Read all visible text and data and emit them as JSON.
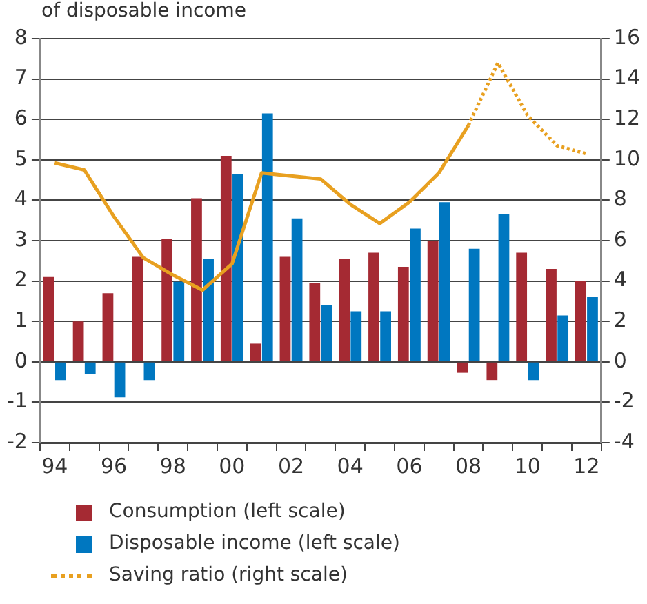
{
  "chart_data": {
    "type": "bar",
    "title": "of disposable income",
    "categories": [
      "94",
      null,
      "96",
      null,
      "98",
      null,
      "00",
      null,
      "02",
      null,
      "04",
      null,
      "06",
      null,
      "08",
      null,
      "10",
      null,
      "12"
    ],
    "series": [
      {
        "name": "Consumption (left scale)",
        "color": "#a52a33",
        "values": [
          2.1,
          1.0,
          1.7,
          2.6,
          3.05,
          4.05,
          5.1,
          0.45,
          2.6,
          1.95,
          2.55,
          2.7,
          2.35,
          3.0,
          -0.27,
          -0.45,
          2.7,
          2.3,
          2.0
        ]
      },
      {
        "name": "Disposable income (left scale)",
        "color": "#0077c0",
        "values": [
          -0.45,
          -0.3,
          -0.88,
          -0.45,
          1.98,
          2.55,
          4.65,
          6.15,
          3.55,
          1.4,
          1.25,
          1.25,
          3.3,
          3.95,
          2.8,
          3.65,
          -0.45,
          1.15,
          1.6
        ]
      },
      {
        "type": "line",
        "axis": "y2",
        "color": "#e8a020",
        "line_style": "solid",
        "values": [
          9.85,
          9.5,
          7.2,
          5.15,
          4.3,
          3.55,
          4.85,
          9.35,
          9.2,
          9.05,
          7.8,
          6.85,
          7.9,
          9.35,
          11.7,
          null,
          null,
          null,
          null
        ]
      },
      {
        "name": "Saving ratio (right scale)",
        "type": "line",
        "axis": "y2",
        "color": "#e8a020",
        "line_style": "dotted",
        "values": [
          null,
          null,
          null,
          null,
          null,
          null,
          null,
          null,
          null,
          null,
          null,
          null,
          null,
          null,
          11.7,
          14.8,
          12.2,
          10.7,
          10.3
        ]
      }
    ],
    "ylim": [
      -2,
      8
    ],
    "yticks": [
      -2,
      -1,
      0,
      1,
      2,
      3,
      4,
      5,
      6,
      7,
      8
    ],
    "y2lim": [
      -4,
      16
    ],
    "y2ticks": [
      -4,
      -2,
      0,
      2,
      4,
      6,
      8,
      10,
      12,
      14,
      16
    ],
    "grid": "y",
    "legend": "bottom"
  }
}
